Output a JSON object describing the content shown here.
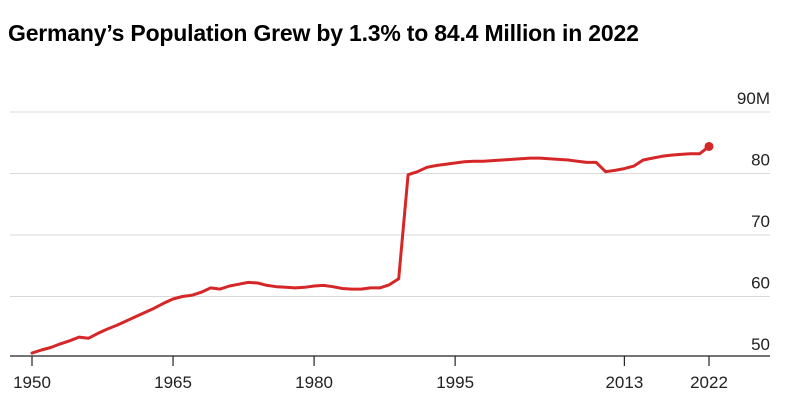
{
  "chart_data": {
    "type": "line",
    "title": "Germany’s Population Grew by 1.3% to 84.4 Million in 2022",
    "ylim": [
      50,
      90
    ],
    "y_ticks": [
      {
        "value": 90,
        "label": "90M"
      },
      {
        "value": 80,
        "label": "80"
      },
      {
        "value": 70,
        "label": "70"
      },
      {
        "value": 60,
        "label": "60"
      },
      {
        "value": 50,
        "label": "50"
      }
    ],
    "x_ticks": [
      {
        "value": 1950,
        "label": "1950"
      },
      {
        "value": 1965,
        "label": "1965"
      },
      {
        "value": 1980,
        "label": "1980"
      },
      {
        "value": 1995,
        "label": "1995"
      },
      {
        "value": 2013,
        "label": "2013"
      },
      {
        "value": 2022,
        "label": "2022"
      }
    ],
    "grid": true,
    "color": "#d62728",
    "series": [
      {
        "x": [
          1950,
          1951,
          1952,
          1953,
          1954,
          1955,
          1956,
          1957,
          1958,
          1959,
          1960,
          1961,
          1962,
          1963,
          1964,
          1965,
          1966,
          1967,
          1968,
          1969,
          1970,
          1971,
          1972,
          1973,
          1974,
          1975,
          1976,
          1977,
          1978,
          1979,
          1980,
          1981,
          1982,
          1983,
          1984,
          1985,
          1986,
          1987,
          1988,
          1989,
          1990,
          1991,
          1992,
          1993,
          1994,
          1995,
          1996,
          1997,
          1998,
          1999,
          2000,
          2001,
          2002,
          2003,
          2004,
          2005,
          2006,
          2007,
          2008,
          2009,
          2010,
          2011,
          2012,
          2013,
          2014,
          2015,
          2016,
          2017,
          2018,
          2019,
          2020,
          2021,
          2022
        ],
        "y": [
          50.8,
          51.3,
          51.7,
          52.3,
          52.8,
          53.4,
          53.2,
          54.0,
          54.7,
          55.3,
          56.0,
          56.7,
          57.4,
          58.1,
          58.9,
          59.6,
          60.0,
          60.2,
          60.7,
          61.4,
          61.2,
          61.7,
          62.0,
          62.3,
          62.2,
          61.8,
          61.6,
          61.5,
          61.4,
          61.5,
          61.7,
          61.8,
          61.6,
          61.3,
          61.2,
          61.2,
          61.4,
          61.4,
          61.9,
          62.9,
          79.8,
          80.3,
          81.0,
          81.3,
          81.5,
          81.7,
          81.9,
          82.0,
          82.0,
          82.1,
          82.2,
          82.3,
          82.4,
          82.5,
          82.5,
          82.4,
          82.3,
          82.2,
          82.0,
          81.8,
          81.8,
          80.3,
          80.5,
          80.8,
          81.2,
          82.2,
          82.5,
          82.8,
          83.0,
          83.1,
          83.2,
          83.2,
          84.4
        ]
      }
    ]
  }
}
